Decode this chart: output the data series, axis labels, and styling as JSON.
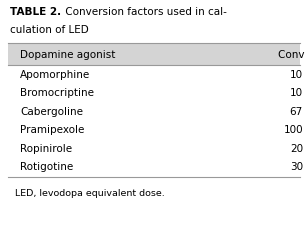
{
  "title_bold": "TABLE 2.",
  "title_normal": " Conversion factors used in cal-\nculation of LED",
  "col_headers": [
    "Dopamine agonist",
    "Conversion factor"
  ],
  "rows": [
    [
      "Apomorphine",
      "10"
    ],
    [
      "Bromocriptine",
      "10"
    ],
    [
      "Cabergoline",
      "67"
    ],
    [
      "Pramipexole",
      "100"
    ],
    [
      "Ropinirole",
      "20"
    ],
    [
      "Rotigotine",
      "30"
    ]
  ],
  "footnote": "LED, levodopa equivalent dose.",
  "header_bg": "#d4d4d4",
  "table_bg": "#ffffff",
  "outer_bg": "#ffffff",
  "header_fontsize": 7.5,
  "row_fontsize": 7.5,
  "title_fontsize": 7.5,
  "footnote_fontsize": 6.8,
  "fig_width": 3.05,
  "fig_height": 2.48,
  "dpi": 100
}
